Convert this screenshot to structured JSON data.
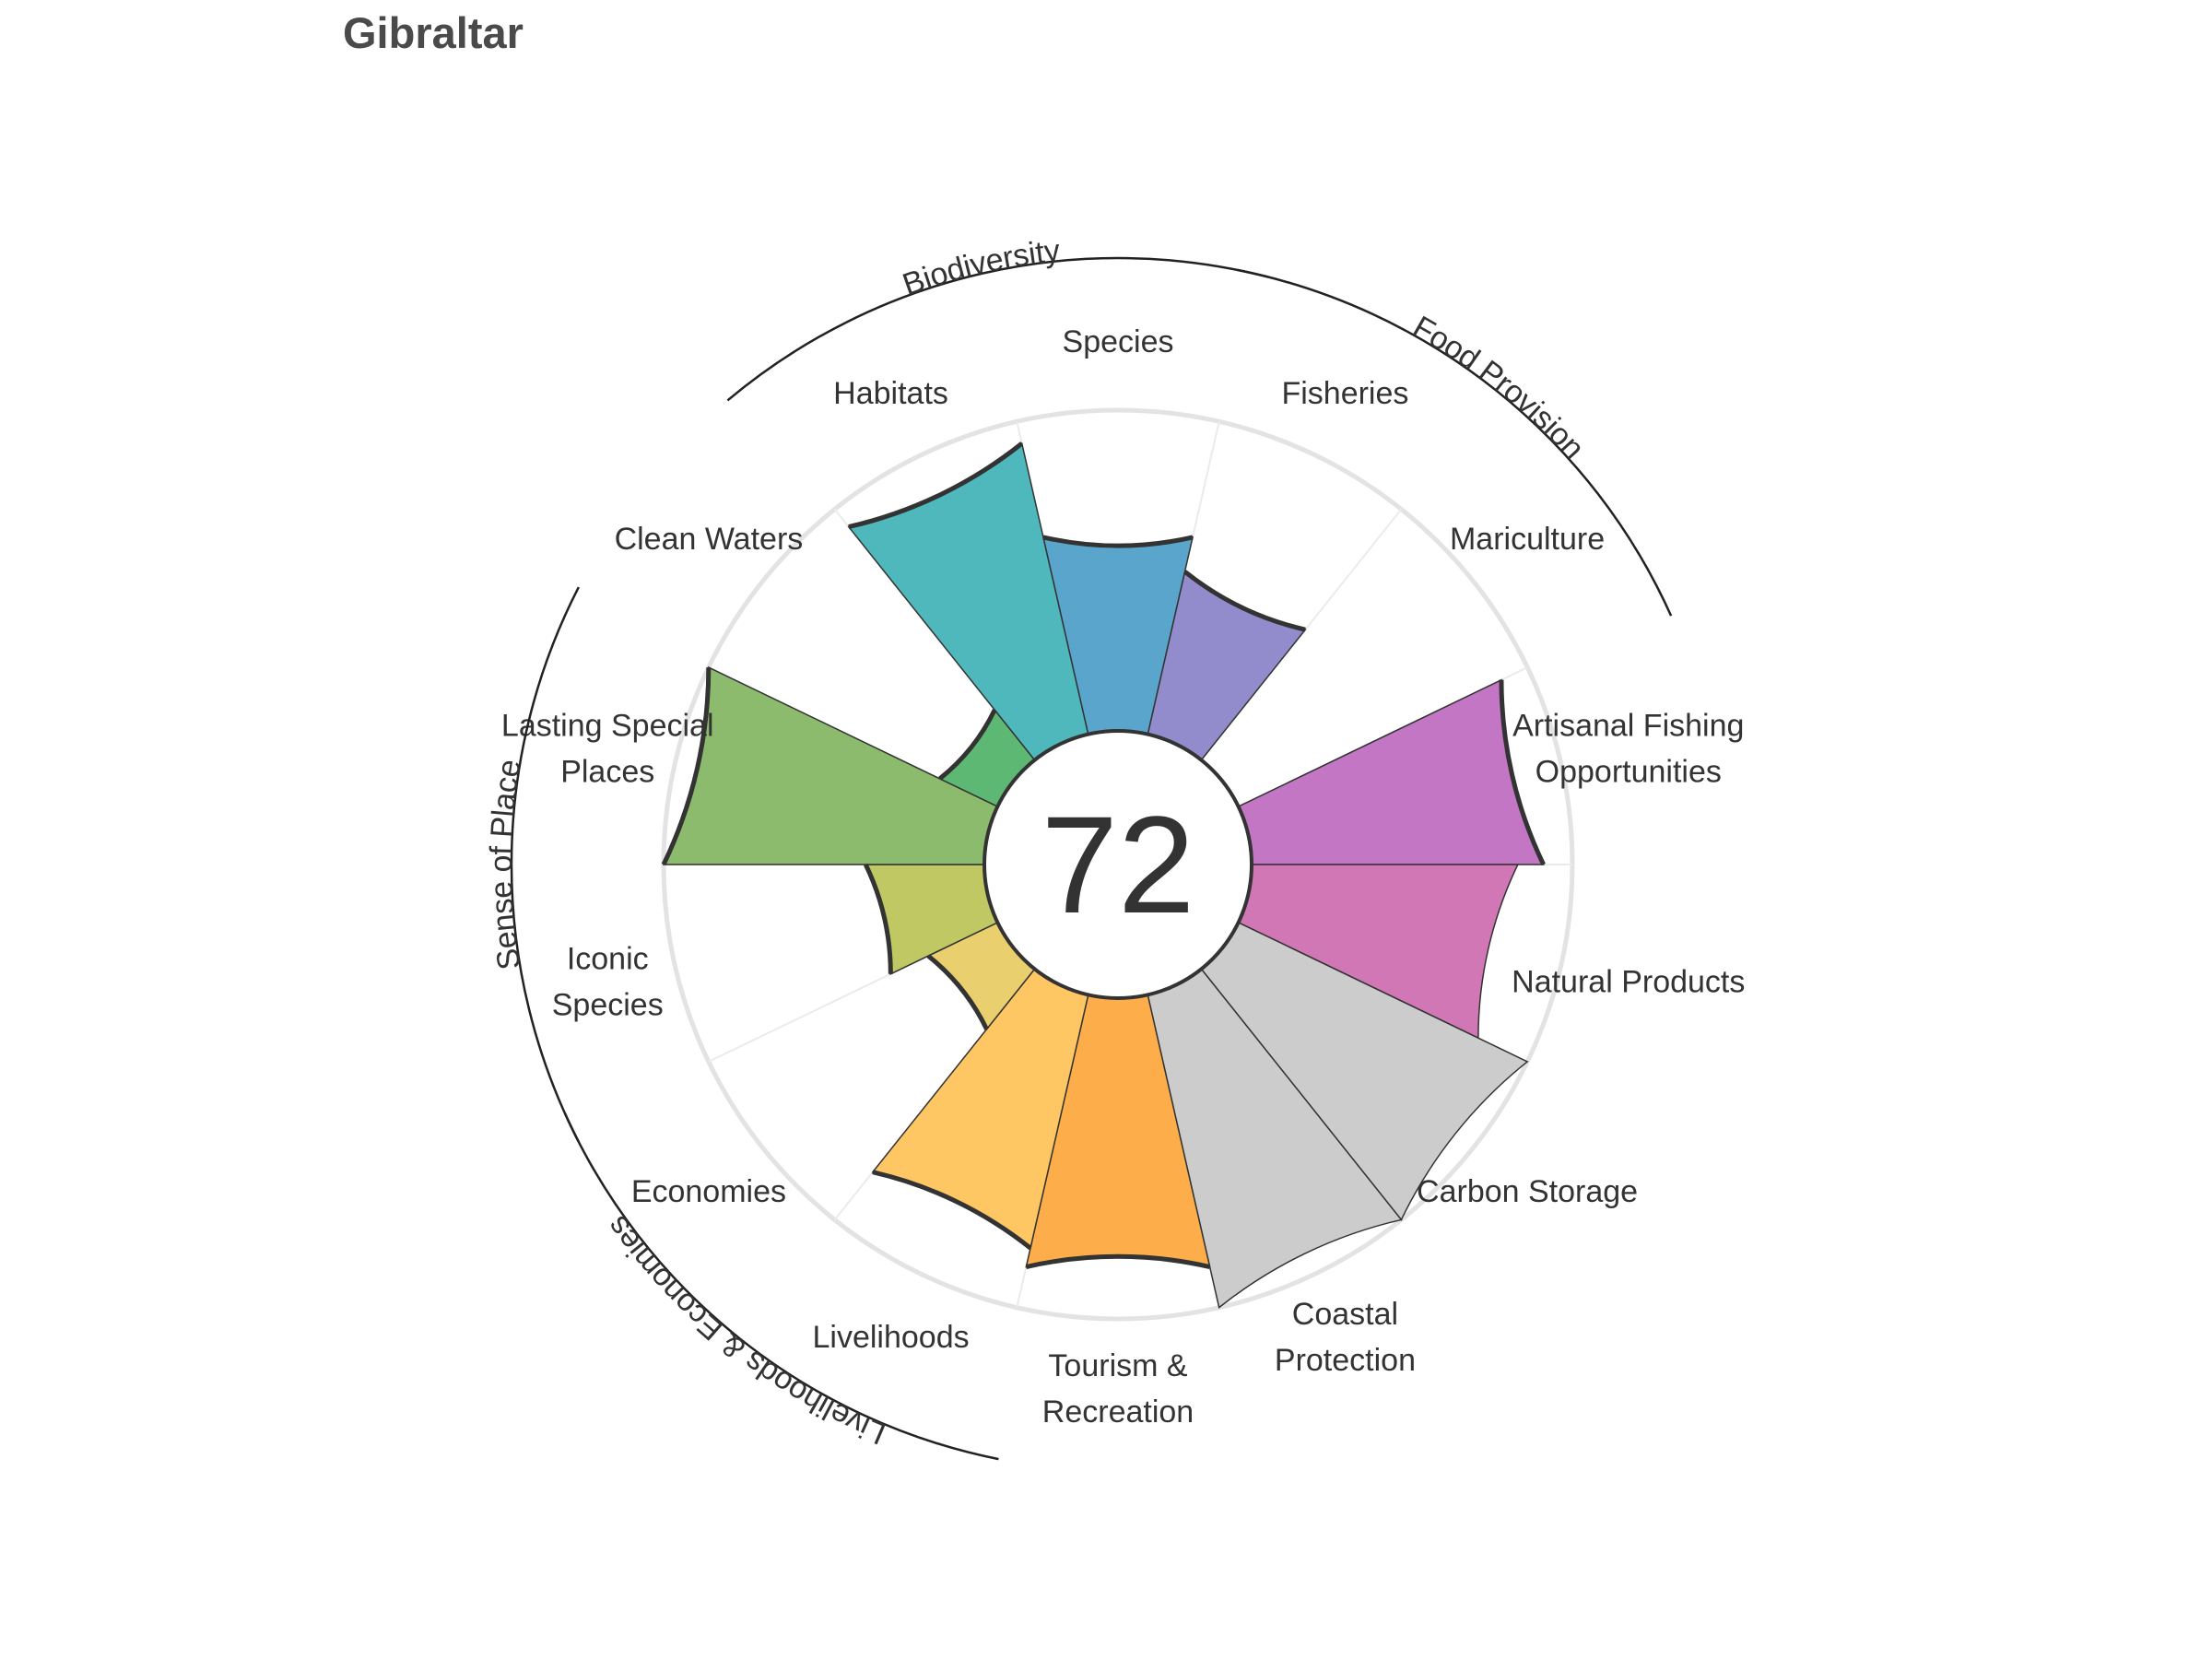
{
  "title": "Gibraltar",
  "score": "72",
  "chart_data": {
    "type": "polar-bar",
    "title": "Gibraltar",
    "ylim": [
      0,
      100
    ],
    "grid": false,
    "legend": "none",
    "slices": [
      {
        "name": "Fisheries",
        "label_lines": [
          "Fisheries"
        ],
        "value": 52,
        "color": "#928bcc",
        "outlined": true,
        "score": true
      },
      {
        "name": "Mariculture",
        "label_lines": [
          "Mariculture"
        ],
        "value": null,
        "color": "#ffffff",
        "outlined": false,
        "score": false
      },
      {
        "name": "Artisanal Fishing Opportunities",
        "label_lines": [
          "Artisanal Fishing",
          "Opportunities"
        ],
        "value": 91,
        "color": "#c376c4",
        "outlined": true,
        "score": true
      },
      {
        "name": "Natural Products",
        "label_lines": [
          "Natural Products"
        ],
        "value": 83,
        "color": "#d177b6",
        "outlined": false,
        "score": true
      },
      {
        "name": "Carbon Storage",
        "label_lines": [
          "Carbon Storage"
        ],
        "value": 100,
        "color": "#cccccc",
        "outlined": false,
        "score": false
      },
      {
        "name": "Coastal Protection",
        "label_lines": [
          "Coastal",
          "Protection"
        ],
        "value": 100,
        "color": "#cccccc",
        "outlined": false,
        "score": false
      },
      {
        "name": "Tourism & Recreation",
        "label_lines": [
          "Tourism &",
          "Recreation"
        ],
        "value": 87,
        "color": "#fdae4b",
        "outlined": true,
        "score": true
      },
      {
        "name": "Livelihoods",
        "label_lines": [
          "Livelihoods"
        ],
        "value": 81,
        "color": "#fec763",
        "outlined": true,
        "score": true
      },
      {
        "name": "Economies",
        "label_lines": [
          "Economies"
        ],
        "value": 24,
        "color": "#e9cf6e",
        "outlined": true,
        "score": true
      },
      {
        "name": "Iconic Species",
        "label_lines": [
          "Iconic",
          "Species"
        ],
        "value": 37,
        "color": "#bfc863",
        "outlined": true,
        "score": true
      },
      {
        "name": "Lasting Special Places",
        "label_lines": [
          "Lasting Special",
          "Places"
        ],
        "value": 100,
        "color": "#8cbb6d",
        "outlined": true,
        "score": true
      },
      {
        "name": "Clean Waters",
        "label_lines": [
          "Clean Waters"
        ],
        "value": 20,
        "color": "#5db873",
        "outlined": true,
        "score": true
      },
      {
        "name": "Habitats",
        "label_lines": [
          "Habitats"
        ],
        "value": 93,
        "color": "#4eb8bd",
        "outlined": true,
        "score": true
      },
      {
        "name": "Species",
        "label_lines": [
          "Species"
        ],
        "value": 63,
        "color": "#5aa5cb",
        "outlined": true,
        "score": true
      }
    ],
    "groups": [
      {
        "name": "Food Provision",
        "first": 0,
        "last": 1
      },
      {
        "name": "Biodiversity",
        "first": 12,
        "last": 13
      },
      {
        "name": "Sense of Place",
        "first": 9,
        "last": 10
      },
      {
        "name": "Livelihoods & Economies",
        "first": 7,
        "last": 8
      }
    ]
  }
}
